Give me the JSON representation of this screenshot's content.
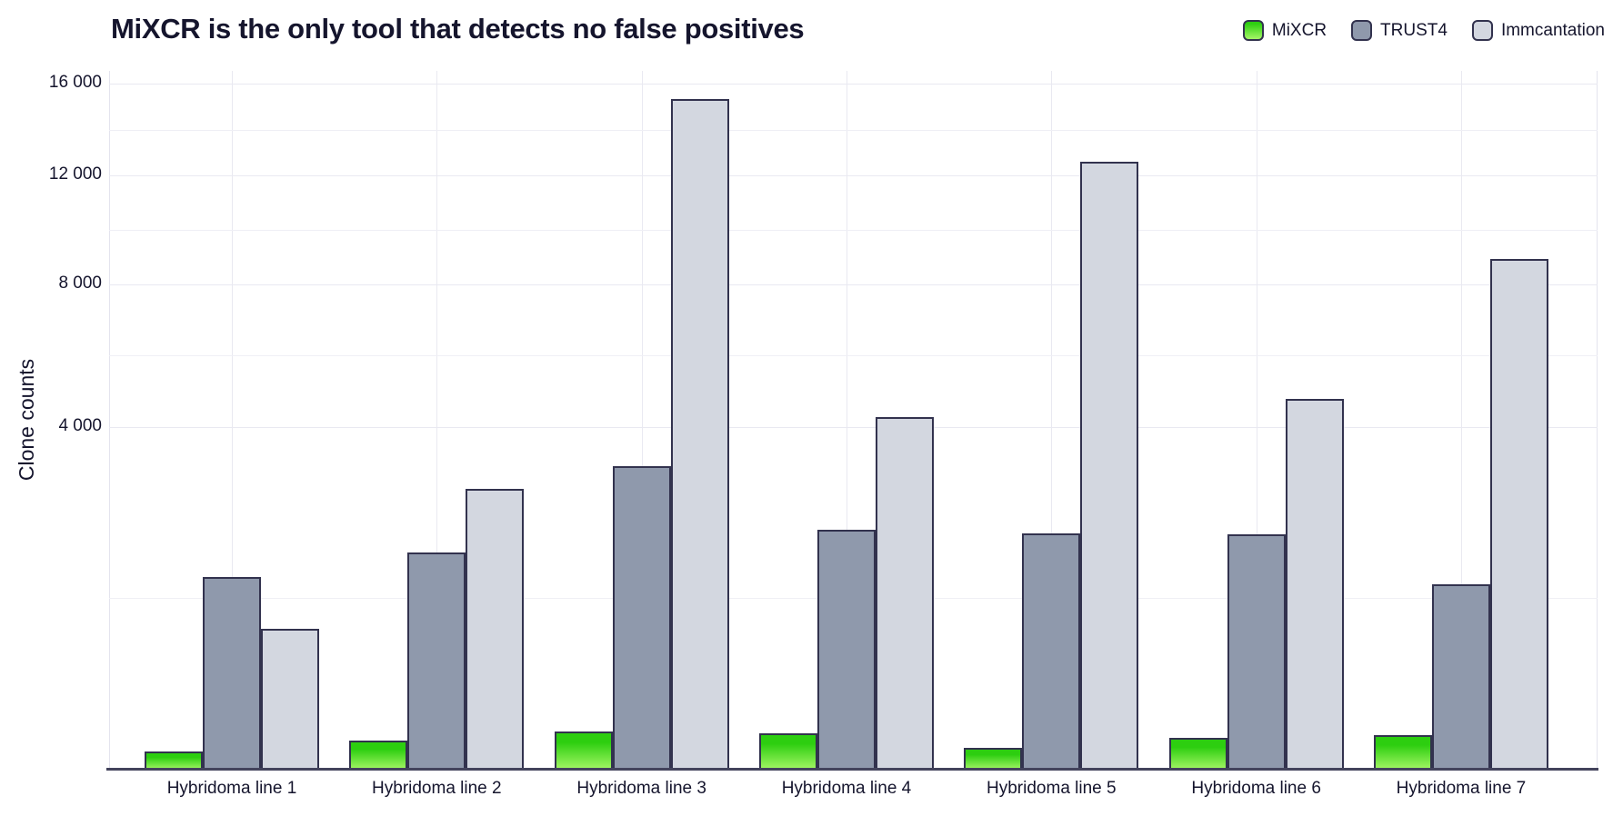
{
  "title": "MiXCR is the only tool that detects no false positives",
  "chart_data": {
    "type": "bar",
    "title": "MiXCR is the only tool that detects no false positives",
    "xlabel": "",
    "ylabel": "Clone counts",
    "y_scale": "sqrt",
    "y_max": 16600,
    "grid": "on",
    "legend_position": "top-right",
    "categories": [
      "Hybridoma line 1",
      "Hybridoma line 2",
      "Hybridoma line 3",
      "Hybridoma line 4",
      "Hybridoma line 5",
      "Hybridoma line 6",
      "Hybridoma line 7"
    ],
    "series": [
      {
        "name": "MiXCR",
        "values": [
          11,
          29,
          50,
          45,
          16,
          34,
          40
        ],
        "fill_top": "#2dce10",
        "fill_bottom": "#a5f666",
        "border": "#32324e"
      },
      {
        "name": "TRUST4",
        "values": [
          1260,
          1600,
          3130,
          1950,
          1900,
          1880,
          1170
        ],
        "fill": "#8f99ac",
        "border": "#32324e"
      },
      {
        "name": "Immcantation",
        "values": [
          675,
          2680,
          15280,
          4220,
          12560,
          4670,
          8870
        ],
        "fill": "#d3d7e0",
        "border": "#32324e"
      }
    ],
    "y_ticks": [
      {
        "value": 4000,
        "label": "4 000"
      },
      {
        "value": 8000,
        "label": "8 000"
      },
      {
        "value": 12000,
        "label": "12 000"
      },
      {
        "value": 16000,
        "label": "16 000"
      }
    ]
  },
  "colors": {
    "text": "#15152d",
    "grid_major": "#e9e9f1",
    "grid_minor": "#efeff5",
    "axis_line": "#43435c",
    "bar_border": "#32324e",
    "mixcr_green_top": "#2dce10",
    "mixcr_green_bottom": "#a5f666",
    "trust4_slate": "#8f99ac",
    "immcantation_light": "#d3d7e0"
  }
}
